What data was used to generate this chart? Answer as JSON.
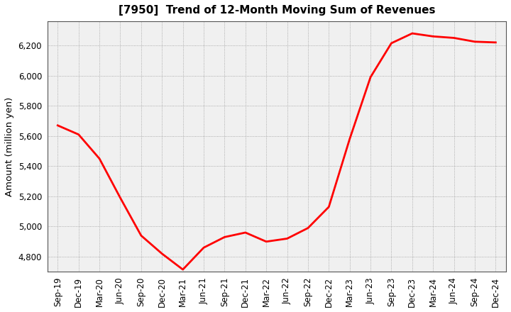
{
  "title": "[7950]  Trend of 12-Month Moving Sum of Revenues",
  "ylabel": "Amount (million yen)",
  "background_color": "#ffffff",
  "plot_bg_color": "#f0f0f0",
  "line_color": "#ff0000",
  "line_width": 2.0,
  "x_labels": [
    "Sep-19",
    "Dec-19",
    "Mar-20",
    "Jun-20",
    "Sep-20",
    "Dec-20",
    "Mar-21",
    "Jun-21",
    "Sep-21",
    "Dec-21",
    "Mar-22",
    "Jun-22",
    "Sep-22",
    "Dec-22",
    "Mar-23",
    "Jun-23",
    "Sep-23",
    "Dec-23",
    "Mar-24",
    "Jun-24",
    "Sep-24",
    "Dec-24"
  ],
  "values": [
    5670,
    5610,
    5450,
    5190,
    4940,
    4820,
    4715,
    4860,
    4930,
    4960,
    4900,
    4920,
    4990,
    5130,
    5580,
    5990,
    6215,
    6280,
    6260,
    6250,
    6225,
    6220
  ],
  "ylim": [
    4700,
    6360
  ],
  "yticks": [
    4800,
    5000,
    5200,
    5400,
    5600,
    5800,
    6000,
    6200
  ],
  "grid_color": "#999999",
  "title_fontsize": 11,
  "tick_fontsize": 8.5,
  "ylabel_fontsize": 9.5
}
